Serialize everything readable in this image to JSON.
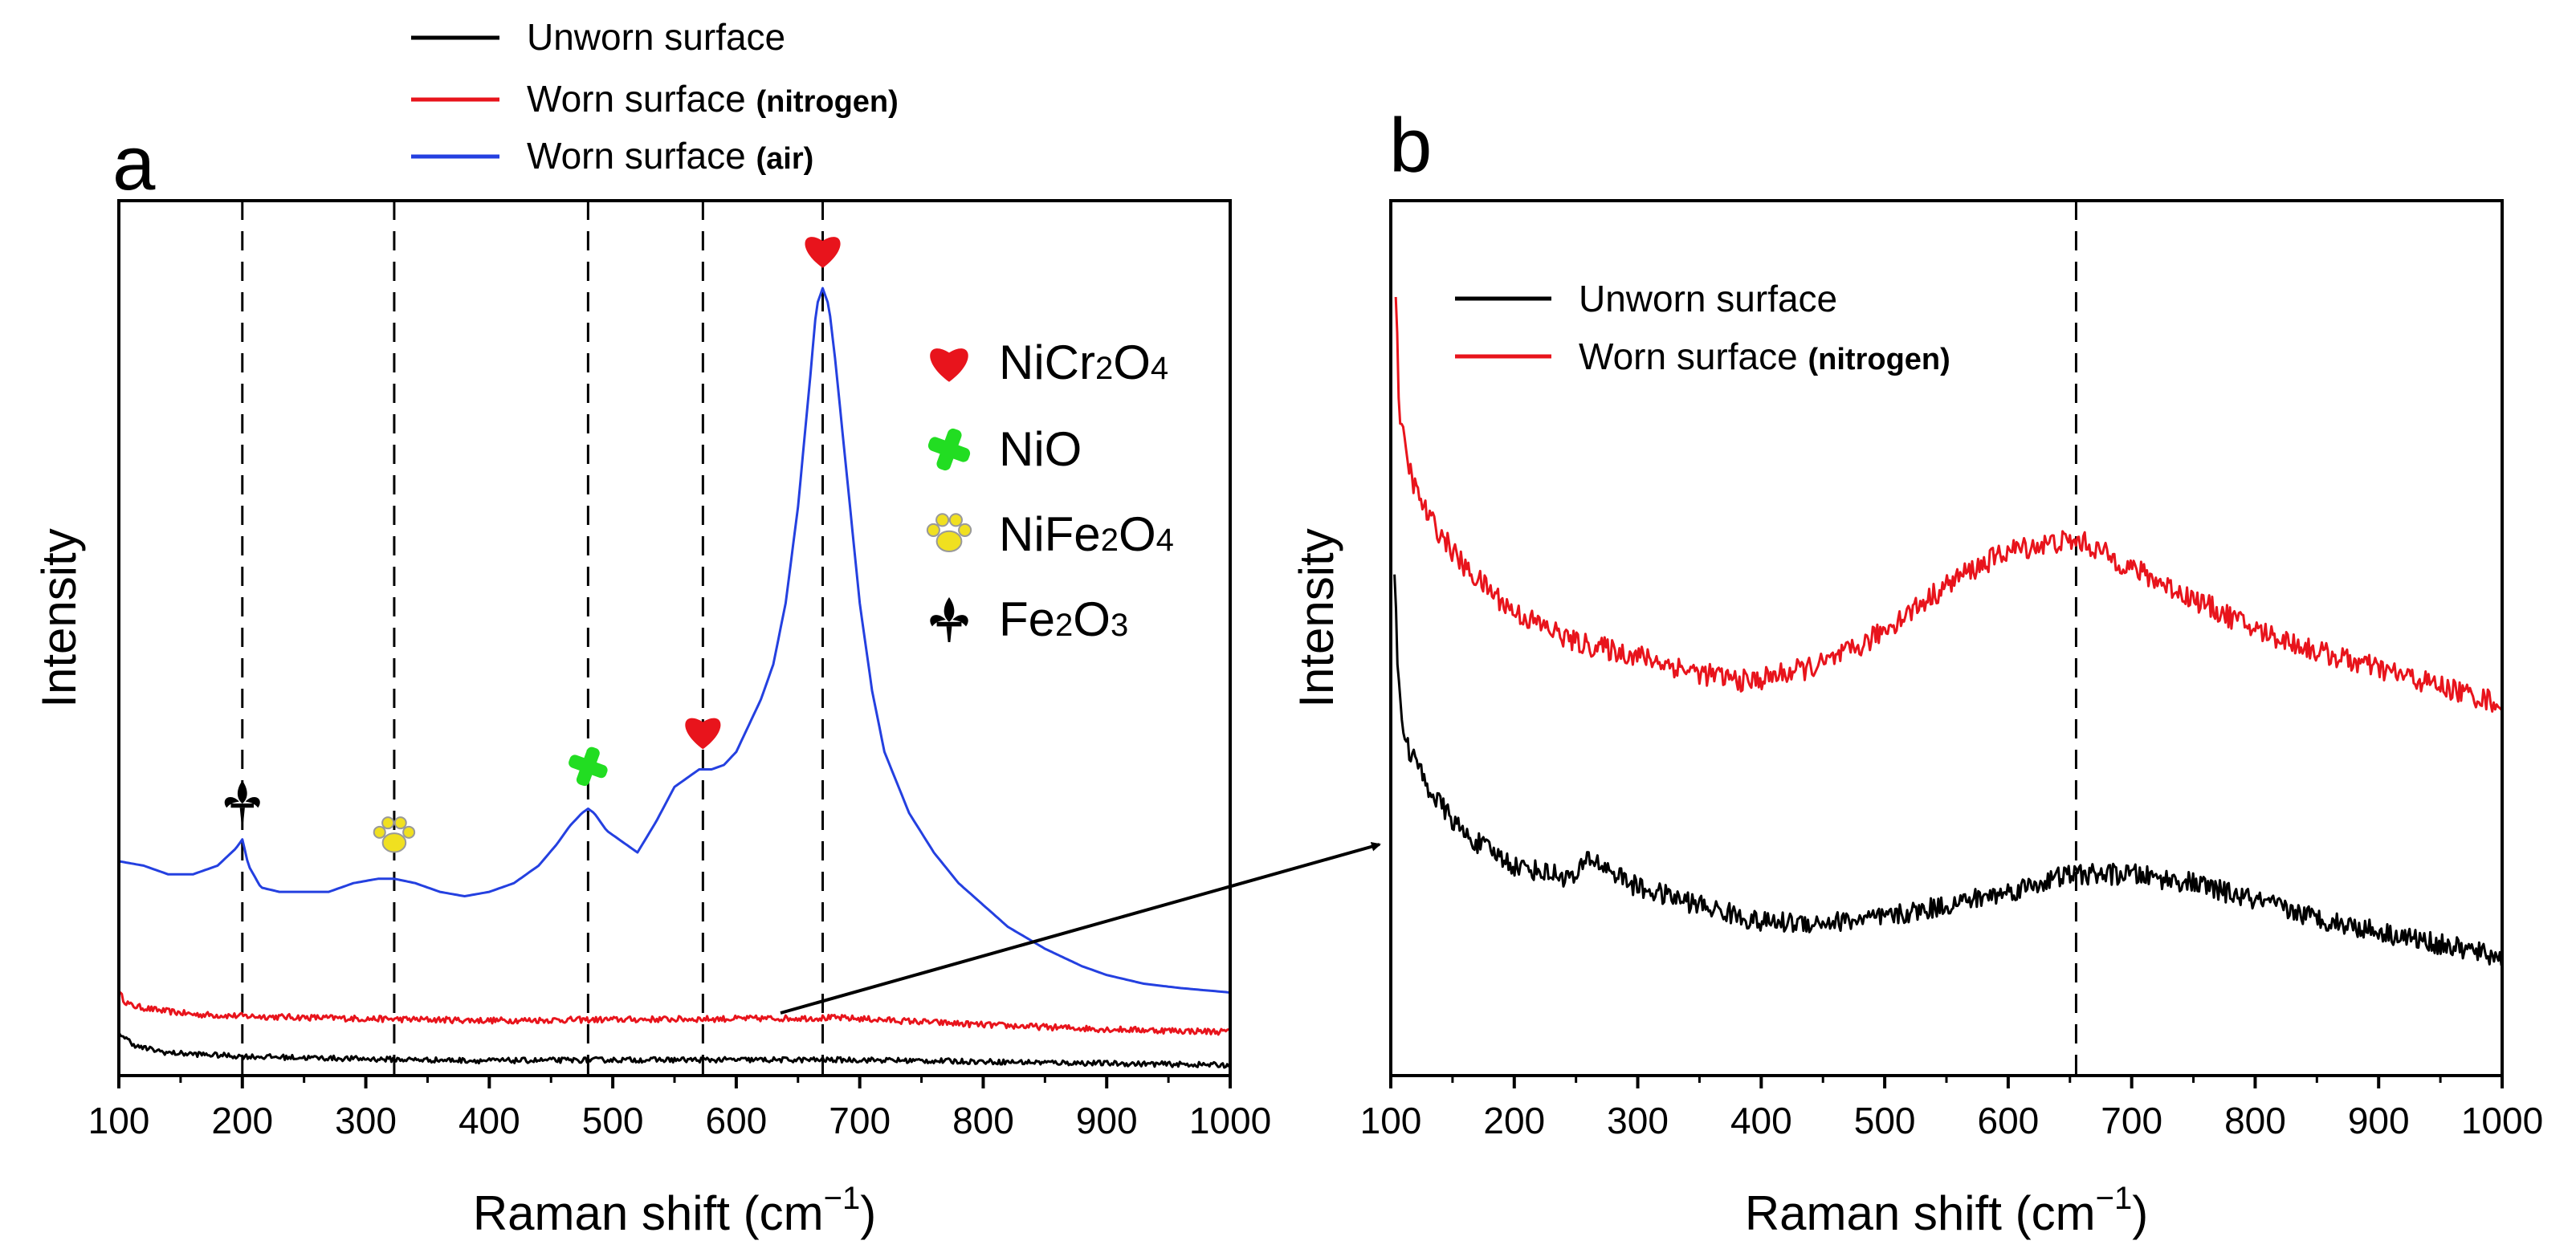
{
  "colors": {
    "unworn": "#000000",
    "worn_nitrogen": "#e8141c",
    "worn_air": "#2440e0",
    "marker_nicr2o4": "#e8141c",
    "marker_nio": "#22dd22",
    "marker_nife2o4": "#f0e020",
    "marker_fe2o3": "#000000"
  },
  "legend": {
    "unworn_label": "Unworn surface",
    "worn_label_main": "Worn surface",
    "nitrogen_suffix": "(nitrogen)",
    "air_suffix": "(air)"
  },
  "markers_legend": [
    {
      "base": "NiCr",
      "sub1": "2",
      "mid": "O",
      "sub2": "4",
      "icon": "heart-icon"
    },
    {
      "base": "NiO",
      "sub1": "",
      "mid": "",
      "sub2": "",
      "icon": "cross-icon"
    },
    {
      "base": "NiFe",
      "sub1": "2",
      "mid": "O",
      "sub2": "4",
      "icon": "paw-icon"
    },
    {
      "base": "Fe",
      "sub1": "2",
      "mid": "O",
      "sub2": "3",
      "icon": "fleur-icon"
    }
  ],
  "chart_data": [
    {
      "panel_label": "a",
      "type": "line",
      "xlabel_text": "Raman shift (cm",
      "xlabel_sup": "−1",
      "xlabel_close": ")",
      "ylabel": "Intensity",
      "xlim": [
        100,
        1000
      ],
      "ylim": [
        0,
        100
      ],
      "xticks": [
        "100",
        "200",
        "300",
        "400",
        "500",
        "600",
        "700",
        "800",
        "900",
        "1000"
      ],
      "dashed_lines_x": [
        200,
        323,
        480,
        573,
        670
      ],
      "peak_markers": [
        {
          "x": 200,
          "y": 29.5,
          "icon": "fleur-icon"
        },
        {
          "x": 323,
          "y": 25.5,
          "icon": "paw-icon"
        },
        {
          "x": 480,
          "y": 33.5,
          "icon": "cross-icon"
        },
        {
          "x": 573,
          "y": 37.5,
          "icon": "heart-icon"
        },
        {
          "x": 670,
          "y": 92.5,
          "icon": "heart-icon"
        }
      ],
      "series": [
        {
          "name": "Worn surface (air)",
          "key": "worn_air",
          "x": [
            100,
            120,
            140,
            160,
            180,
            195,
            200,
            205,
            215,
            230,
            250,
            270,
            290,
            310,
            323,
            340,
            360,
            380,
            400,
            420,
            440,
            455,
            465,
            475,
            480,
            485,
            495,
            505,
            520,
            535,
            550,
            560,
            570,
            575,
            580,
            590,
            600,
            610,
            620,
            630,
            640,
            650,
            660,
            665,
            670,
            675,
            680,
            690,
            700,
            710,
            720,
            740,
            760,
            780,
            800,
            820,
            850,
            880,
            900,
            930,
            960,
            1000
          ],
          "y": [
            24.5,
            24,
            23,
            23,
            24,
            26,
            27,
            24,
            21.5,
            21,
            21,
            21,
            22,
            22.5,
            22.5,
            22,
            21,
            20.5,
            21,
            22,
            24,
            26.5,
            28.5,
            30,
            30.5,
            30,
            28,
            27,
            25.5,
            29,
            33,
            34,
            35,
            35,
            35,
            35.5,
            37,
            40,
            43,
            47,
            54,
            65,
            80,
            88,
            90,
            88,
            82,
            68,
            54,
            44,
            37,
            30,
            25.5,
            22,
            19.5,
            17,
            14.5,
            12.5,
            11.5,
            10.5,
            10,
            9.5
          ]
        },
        {
          "name": "Worn surface (nitrogen)",
          "key": "worn_nitrogen",
          "x": [
            100,
            105,
            110,
            130,
            160,
            200,
            300,
            400,
            500,
            600,
            680,
            700,
            800,
            900,
            1000
          ],
          "y": [
            9.5,
            8.5,
            8,
            7.5,
            7,
            6.8,
            6.5,
            6.3,
            6.4,
            6.5,
            6.6,
            6.5,
            5.8,
            5.3,
            5
          ],
          "noise": 0.35
        },
        {
          "name": "Unworn surface",
          "key": "unworn",
          "x": [
            100,
            105,
            115,
            140,
            200,
            300,
            400,
            500,
            600,
            700,
            800,
            900,
            1000
          ],
          "y": [
            5,
            4.3,
            3.3,
            2.6,
            2.2,
            1.9,
            1.7,
            1.8,
            1.8,
            1.8,
            1.6,
            1.4,
            1.2
          ],
          "noise": 0.3
        }
      ]
    },
    {
      "panel_label": "b",
      "type": "line",
      "xlabel_text": "Raman shift (cm",
      "xlabel_sup": "−1",
      "xlabel_close": ")",
      "ylabel": "Intensity",
      "xlim": [
        100,
        1000
      ],
      "ylim": [
        0,
        100
      ],
      "xticks": [
        "100",
        "200",
        "300",
        "400",
        "500",
        "600",
        "700",
        "800",
        "900",
        "1000"
      ],
      "dashed_lines_x": [
        655
      ],
      "series": [
        {
          "name": "Worn surface (nitrogen)",
          "key": "worn_nitrogen",
          "x": [
            104,
            107,
            112,
            120,
            130,
            140,
            160,
            200,
            250,
            300,
            350,
            390,
            420,
            450,
            480,
            520,
            560,
            600,
            640,
            660,
            700,
            750,
            800,
            850,
            900,
            950,
            1000
          ],
          "y": [
            89,
            76,
            71,
            67,
            64,
            62,
            58,
            53,
            49.5,
            48,
            46,
            45,
            46,
            47,
            49,
            53,
            57,
            60,
            61,
            61,
            58,
            54.5,
            51,
            48.5,
            46.5,
            44.5,
            42.5
          ],
          "noise": 1.3
        },
        {
          "name": "Unworn surface",
          "key": "unworn",
          "x": [
            103,
            106,
            112,
            120,
            130,
            140,
            160,
            200,
            250,
            260,
            300,
            350,
            400,
            450,
            500,
            550,
            600,
            650,
            700,
            750,
            800,
            850,
            900,
            950,
            1000
          ],
          "y": [
            57,
            45,
            38,
            36,
            33,
            31,
            27.5,
            24,
            22.5,
            25,
            21.5,
            19.5,
            17.5,
            17.5,
            18,
            19.5,
            21,
            23,
            23,
            22,
            20,
            18,
            16.5,
            15,
            13.5
          ],
          "noise": 1.2
        }
      ]
    }
  ]
}
